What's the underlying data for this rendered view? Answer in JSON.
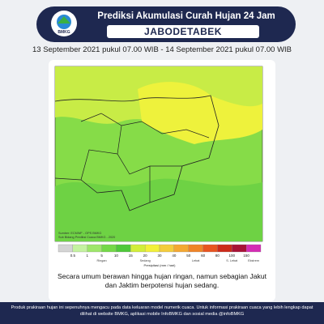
{
  "header": {
    "logo": "BMKG",
    "title": "Prediksi Akumulasi Curah Hujan 24 Jam",
    "region": "JABODETABEK"
  },
  "period": "13 September 2021 pukul 07.00 WIB - 14 September 2021 pukul 07.00 WIB",
  "map": {
    "source": "Sumber: ECMWF - OPS BMKG",
    "credit": "Sub Bidang Prediksi Cuaca BMKG - 2020"
  },
  "legend": {
    "ticks": [
      0.5,
      1,
      5,
      10,
      15,
      20,
      30,
      40,
      50,
      60,
      80,
      100,
      150
    ],
    "colors": [
      "#d4d4d4",
      "#c4f2a0",
      "#9ee66a",
      "#74d848",
      "#4fc83a",
      "#d2ee3a",
      "#f2f03a",
      "#f4cc3c",
      "#f4a832",
      "#ef8428",
      "#e85420",
      "#cc2a1a",
      "#a81236",
      "#d42cb4"
    ],
    "categories": [
      "Ringan",
      "Sedang",
      "Lebat",
      "S. Lebat",
      "Ekstrem"
    ],
    "unit": "Presipitasi (mm / hari)"
  },
  "description": "Secara umum berawan hingga hujan ringan, namun sebagian Jakut dan Jaktim berpotensi hujan sedang.",
  "footer": "Produk prakiraan hujan ini sepenuhnya mengacu pada data keluaran model numerik cuaca. Untuk informasi prakiraan cuaca yang lebih lengkap dapat dilihat di website BMKG, aplikasi mobile InfoBMKG dan sosial media @infoBMKG"
}
